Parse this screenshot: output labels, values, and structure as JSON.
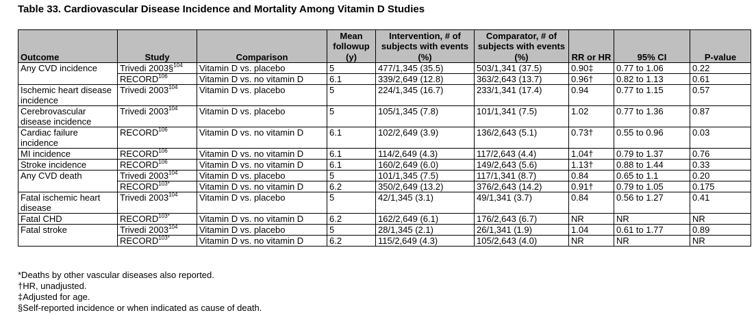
{
  "title": "Table 33. Cardiovascular Disease Incidence and Mortality Among Vitamin D Studies",
  "headers": [
    "Outcome",
    "Study",
    "Comparison",
    "Mean followup (y)",
    "Intervention, # of subjects with events (%)",
    "Comparator, # of subjects with events (%)",
    "RR or HR",
    "95% CI",
    "P-value"
  ],
  "rows": [
    {
      "outcome": "Any CVD incidence",
      "study": "Trivedi 2003§",
      "ref": "104",
      "comparison": "Vitamin D vs. placebo",
      "followup": "5",
      "intervention": "477/1,345 (35.5)",
      "comparator": "503/1,341 (37.5)",
      "rr": "0.90‡",
      "ci": "0.77 to 1.06",
      "p": "0.22"
    },
    {
      "outcome": "",
      "study": "RECORD",
      "ref": "106",
      "comparison": "Vitamin D vs. no vitamin D",
      "followup": "6.1",
      "intervention": "339/2,649 (12.8)",
      "comparator": "363/2,643 (13.7)",
      "rr": "0.96†",
      "ci": "0.82 to 1.13",
      "p": "0.61"
    },
    {
      "outcome": "Ischemic heart disease incidence",
      "study": "Trivedi 2003",
      "ref": "104",
      "comparison": "Vitamin D vs. placebo",
      "followup": "5",
      "intervention": "224/1,345 (16.7)",
      "comparator": "233/1,341 (17.4)",
      "rr": "0.94",
      "ci": "0.77 to 1.15",
      "p": "0.57"
    },
    {
      "outcome": "Cerebrovascular disease incidence",
      "study": "Trivedi 2003",
      "ref": "104",
      "comparison": "Vitamin D vs. placebo",
      "followup": "5",
      "intervention": "105/1,345 (7.8)",
      "comparator": "101/1,341 (7.5)",
      "rr": "1.02",
      "ci": "0.77 to 1.36",
      "p": "0.87"
    },
    {
      "outcome": "Cardiac failure incidence",
      "study": "RECORD",
      "ref": "106",
      "comparison": "Vitamin D vs. no vitamin D",
      "followup": "6.1",
      "intervention": "102/2,649 (3.9)",
      "comparator": "136/2,643 (5.1)",
      "rr": "0.73†",
      "ci": "0.55 to 0.96",
      "p": "0.03"
    },
    {
      "outcome": "MI incidence",
      "study": "RECORD",
      "ref": "106",
      "comparison": "Vitamin D vs. no vitamin D",
      "followup": "6.1",
      "intervention": "114/2,649 (4.3)",
      "comparator": "117/2,643 (4.4)",
      "rr": "1.04†",
      "ci": "0.79 to 1.37",
      "p": "0.76"
    },
    {
      "outcome": "Stroke incidence",
      "study": "RECORD",
      "ref": "106",
      "comparison": "Vitamin D vs. no vitamin D",
      "followup": "6.1",
      "intervention": "160/2,649 (6.0)",
      "comparator": "149/2,643 (5.6)",
      "rr": "1.13†",
      "ci": "0.88 to 1.44",
      "p": "0.33"
    },
    {
      "outcome": "Any CVD death",
      "study": "Trivedi 2003",
      "ref": "104",
      "comparison": "Vitamin D vs. placebo",
      "followup": "5",
      "intervention": "101/1,345 (7.5)",
      "comparator": "117/1,341 (8.7)",
      "rr": "0.84",
      "ci": "0.65 to 1.1",
      "p": "0.20"
    },
    {
      "outcome": "",
      "study": "RECORD",
      "ref": "103*",
      "comparison": "Vitamin D vs. no vitamin D",
      "followup": "6.2",
      "intervention": "350/2,649 (13.2)",
      "comparator": "376/2,643 (14.2)",
      "rr": "0.91†",
      "ci": "0.79 to 1.05",
      "p": "0.175"
    },
    {
      "outcome": "Fatal ischemic heart disease",
      "study": "Trivedi 2003",
      "ref": "104",
      "comparison": "Vitamin D vs. placebo",
      "followup": "5",
      "intervention": "42/1,345 (3.1)",
      "comparator": "49/1,341 (3.7)",
      "rr": "0.84",
      "ci": "0.56 to 1.27",
      "p": "0.41"
    },
    {
      "outcome": "Fatal CHD",
      "study": "RECORD",
      "ref": "103*",
      "comparison": "Vitamin D vs. no vitamin D",
      "followup": "6.2",
      "intervention": "162/2,649 (6.1)",
      "comparator": "176/2,643 (6.7)",
      "rr": "NR",
      "ci": "NR",
      "p": "NR"
    },
    {
      "outcome": "Fatal stroke",
      "study": "Trivedi 2003",
      "ref": "104",
      "comparison": "Vitamin D vs. placebo",
      "followup": "5",
      "intervention": "28/1,345 (2.1)",
      "comparator": "26/1,341 (1.9)",
      "rr": "1.04",
      "ci": "0.61 to 1.77",
      "p": "0.89"
    },
    {
      "outcome": "",
      "study": "RECORD",
      "ref": "103*",
      "comparison": "Vitamin D vs. no vitamin D",
      "followup": "6.2",
      "intervention": "115/2,649 (4.3)",
      "comparator": "105/2,643 (4.0)",
      "rr": "NR",
      "ci": "NR",
      "p": "NR"
    }
  ],
  "notes": [
    "*Deaths by other vascular diseases also reported.",
    "†HR, unadjusted.",
    "‡Adjusted for age.",
    "§Self-reported incidence or when indicated as cause of death."
  ]
}
